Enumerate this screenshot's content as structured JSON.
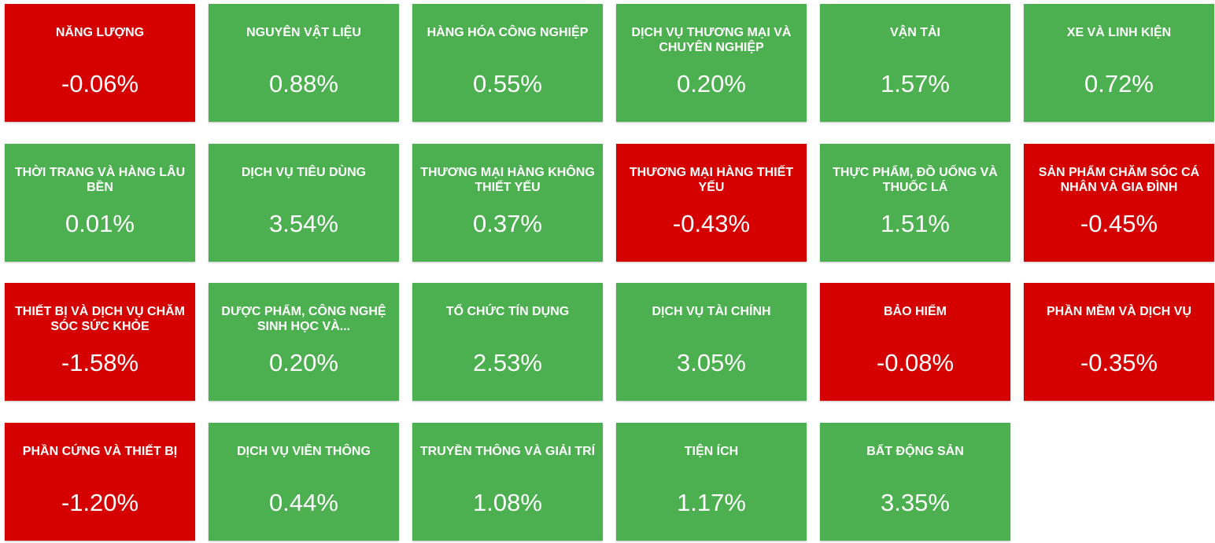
{
  "tiles": [
    {
      "label": "NĂNG LƯỢNG",
      "value": "-0.06%",
      "color": "#d50000"
    },
    {
      "label": "NGUYÊN VẬT LIỆU",
      "value": "0.88%",
      "color": "#4caf50"
    },
    {
      "label": "HÀNG HÓA CÔNG NGHIỆP",
      "value": "0.55%",
      "color": "#4caf50"
    },
    {
      "label": "DỊCH VỤ THƯƠNG MẠI VÀ CHUYÊN NGHIỆP",
      "value": "0.20%",
      "color": "#4caf50"
    },
    {
      "label": "VẬN TẢI",
      "value": "1.57%",
      "color": "#4caf50"
    },
    {
      "label": "XE VÀ LINH KIỆN",
      "value": "0.72%",
      "color": "#4caf50"
    },
    {
      "label": "THỜI TRANG VÀ HÀNG LÂU BỀN",
      "value": "0.01%",
      "color": "#4caf50"
    },
    {
      "label": "DỊCH VỤ TIÊU DÙNG",
      "value": "3.54%",
      "color": "#4caf50"
    },
    {
      "label": "THƯƠNG MẠI HÀNG KHÔNG THIẾT YẾU",
      "value": "0.37%",
      "color": "#4caf50"
    },
    {
      "label": "THƯƠNG MẠI HÀNG THIẾT YẾU",
      "value": "-0.43%",
      "color": "#d50000"
    },
    {
      "label": "THỰC PHẨM, ĐỒ UỐNG VÀ THUỐC LÁ",
      "value": "1.51%",
      "color": "#4caf50"
    },
    {
      "label": "SẢN PHẨM CHĂM SÓC CÁ NHÂN VÀ GIA ĐÌNH",
      "value": "-0.45%",
      "color": "#d50000"
    },
    {
      "label": "THIẾT BỊ VÀ DỊCH VỤ CHĂM SÓC SỨC KHỎE",
      "value": "-1.58%",
      "color": "#d50000"
    },
    {
      "label": "DƯỢC PHẨM, CÔNG NGHỆ SINH HỌC VÀ...",
      "value": "0.20%",
      "color": "#4caf50"
    },
    {
      "label": "TỔ CHỨC TÍN DỤNG",
      "value": "2.53%",
      "color": "#4caf50"
    },
    {
      "label": "DỊCH VỤ TÀI CHÍNH",
      "value": "3.05%",
      "color": "#4caf50"
    },
    {
      "label": "BẢO HIỂM",
      "value": "-0.08%",
      "color": "#d50000"
    },
    {
      "label": "PHẦN MỀM VÀ DỊCH VỤ",
      "value": "-0.35%",
      "color": "#d50000"
    },
    {
      "label": "PHẦN CỨNG VÀ THIẾT BỊ",
      "value": "-1.20%",
      "color": "#d50000"
    },
    {
      "label": "DỊCH VỤ VIỄN THÔNG",
      "value": "0.44%",
      "color": "#4caf50"
    },
    {
      "label": "TRUYỀN THÔNG VÀ GIẢI TRÍ",
      "value": "1.08%",
      "color": "#4caf50"
    },
    {
      "label": "TIỆN ÍCH",
      "value": "1.17%",
      "color": "#4caf50"
    },
    {
      "label": "BẤT ĐỘNG SẢN",
      "value": "3.35%",
      "color": "#4caf50"
    }
  ]
}
